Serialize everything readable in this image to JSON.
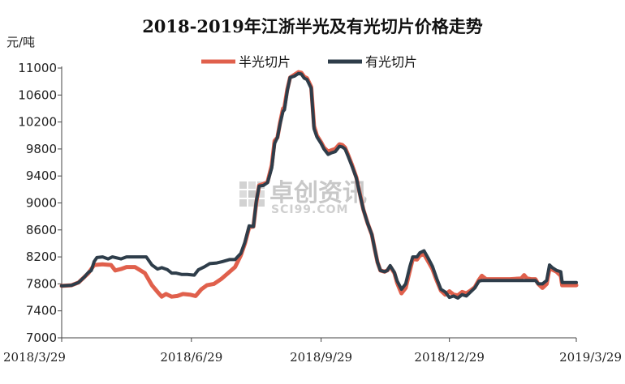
{
  "chart_data": {
    "type": "line",
    "title": "2018-2019年江浙半光及有光切片价格走势",
    "unit_label": "元/吨",
    "ylim": [
      7000,
      11000
    ],
    "y_ticks": [
      "7000",
      "7400",
      "7800",
      "8200",
      "8600",
      "9000",
      "9400",
      "9800",
      "10200",
      "10600",
      "11000"
    ],
    "x_ticks": [
      "2018/3/29",
      "2018/6/29",
      "2018/9/29",
      "2018/12/29",
      "2019/3/29"
    ],
    "xlim": [
      "2018-03-29",
      "2019-03-29"
    ],
    "watermark": {
      "cn": "卓创资讯",
      "en": "SCI99.COM"
    },
    "series": [
      {
        "name": "半光切片",
        "color": "#e0604c",
        "points": [
          [
            "2018-03-29",
            7770
          ],
          [
            "2018-04-05",
            7780
          ],
          [
            "2018-04-10",
            7820
          ],
          [
            "2018-04-14",
            7900
          ],
          [
            "2018-04-17",
            7960
          ],
          [
            "2018-04-21",
            8080
          ],
          [
            "2018-04-27",
            8090
          ],
          [
            "2018-05-03",
            8080
          ],
          [
            "2018-05-06",
            8000
          ],
          [
            "2018-05-10",
            8020
          ],
          [
            "2018-05-14",
            8050
          ],
          [
            "2018-05-20",
            8050
          ],
          [
            "2018-05-27",
            7960
          ],
          [
            "2018-06-01",
            7780
          ],
          [
            "2018-06-05",
            7680
          ],
          [
            "2018-06-08",
            7610
          ],
          [
            "2018-06-11",
            7650
          ],
          [
            "2018-06-15",
            7610
          ],
          [
            "2018-06-19",
            7620
          ],
          [
            "2018-06-23",
            7650
          ],
          [
            "2018-06-28",
            7640
          ],
          [
            "2018-07-02",
            7620
          ],
          [
            "2018-07-06",
            7720
          ],
          [
            "2018-07-10",
            7780
          ],
          [
            "2018-07-15",
            7800
          ],
          [
            "2018-07-20",
            7870
          ],
          [
            "2018-07-25",
            7960
          ],
          [
            "2018-07-30",
            8050
          ],
          [
            "2018-08-03",
            8220
          ],
          [
            "2018-08-06",
            8400
          ],
          [
            "2018-08-09",
            8640
          ],
          [
            "2018-08-12",
            8650
          ],
          [
            "2018-08-14",
            9000
          ],
          [
            "2018-08-16",
            9260
          ],
          [
            "2018-08-19",
            9280
          ],
          [
            "2018-08-22",
            9310
          ],
          [
            "2018-08-25",
            9560
          ],
          [
            "2018-08-27",
            9920
          ],
          [
            "2018-08-29",
            9970
          ],
          [
            "2018-08-31",
            10200
          ],
          [
            "2018-09-02",
            10400
          ],
          [
            "2018-09-03",
            10420
          ],
          [
            "2018-09-05",
            10680
          ],
          [
            "2018-09-07",
            10860
          ],
          [
            "2018-09-10",
            10900
          ],
          [
            "2018-09-13",
            10940
          ],
          [
            "2018-09-15",
            10930
          ],
          [
            "2018-09-17",
            10870
          ],
          [
            "2018-09-19",
            10850
          ],
          [
            "2018-09-22",
            10720
          ],
          [
            "2018-09-24",
            10140
          ],
          [
            "2018-09-26",
            10000
          ],
          [
            "2018-09-29",
            9900
          ],
          [
            "2018-10-01",
            9820
          ],
          [
            "2018-10-04",
            9760
          ],
          [
            "2018-10-06",
            9780
          ],
          [
            "2018-10-09",
            9800
          ],
          [
            "2018-10-12",
            9870
          ],
          [
            "2018-10-14",
            9860
          ],
          [
            "2018-10-16",
            9820
          ],
          [
            "2018-10-18",
            9720
          ],
          [
            "2018-10-21",
            9560
          ],
          [
            "2018-10-24",
            9380
          ],
          [
            "2018-10-27",
            9090
          ],
          [
            "2018-10-29",
            8900
          ],
          [
            "2018-11-01",
            8700
          ],
          [
            "2018-11-04",
            8530
          ],
          [
            "2018-11-06",
            8320
          ],
          [
            "2018-11-08",
            8120
          ],
          [
            "2018-11-10",
            8000
          ],
          [
            "2018-11-13",
            7980
          ],
          [
            "2018-11-15",
            8000
          ],
          [
            "2018-11-17",
            8060
          ],
          [
            "2018-11-20",
            7960
          ],
          [
            "2018-11-22",
            7810
          ],
          [
            "2018-11-25",
            7660
          ],
          [
            "2018-11-28",
            7740
          ],
          [
            "2018-12-01",
            8000
          ],
          [
            "2018-12-03",
            8170
          ],
          [
            "2018-12-06",
            8160
          ],
          [
            "2018-12-08",
            8220
          ],
          [
            "2018-12-11",
            8240
          ],
          [
            "2018-12-14",
            8130
          ],
          [
            "2018-12-17",
            8020
          ],
          [
            "2018-12-20",
            7850
          ],
          [
            "2018-12-23",
            7700
          ],
          [
            "2018-12-26",
            7640
          ],
          [
            "2018-12-29",
            7690
          ],
          [
            "2019-01-01",
            7640
          ],
          [
            "2019-01-04",
            7630
          ],
          [
            "2019-01-07",
            7680
          ],
          [
            "2019-01-10",
            7660
          ],
          [
            "2019-01-13",
            7700
          ],
          [
            "2019-01-16",
            7750
          ],
          [
            "2019-01-19",
            7860
          ],
          [
            "2019-01-21",
            7920
          ],
          [
            "2019-01-24",
            7870
          ],
          [
            "2019-02-01",
            7870
          ],
          [
            "2019-02-10",
            7870
          ],
          [
            "2019-02-18",
            7880
          ],
          [
            "2019-02-20",
            7930
          ],
          [
            "2019-02-22",
            7880
          ],
          [
            "2019-02-25",
            7870
          ],
          [
            "2019-02-28",
            7870
          ],
          [
            "2019-03-02",
            7800
          ],
          [
            "2019-03-05",
            7740
          ],
          [
            "2019-03-08",
            7800
          ],
          [
            "2019-03-10",
            8030
          ],
          [
            "2019-03-12",
            8010
          ],
          [
            "2019-03-15",
            7980
          ],
          [
            "2019-03-18",
            7920
          ],
          [
            "2019-03-19",
            7780
          ],
          [
            "2019-03-22",
            7780
          ],
          [
            "2019-03-29",
            7780
          ]
        ]
      },
      {
        "name": "有光切片",
        "color": "#2e3d4a",
        "points": [
          [
            "2018-03-29",
            7770
          ],
          [
            "2018-04-05",
            7780
          ],
          [
            "2018-04-10",
            7820
          ],
          [
            "2018-04-14",
            7900
          ],
          [
            "2018-04-17",
            7970
          ],
          [
            "2018-04-19",
            8000
          ],
          [
            "2018-04-21",
            8130
          ],
          [
            "2018-04-23",
            8190
          ],
          [
            "2018-04-27",
            8200
          ],
          [
            "2018-05-01",
            8170
          ],
          [
            "2018-05-04",
            8200
          ],
          [
            "2018-05-10",
            8170
          ],
          [
            "2018-05-14",
            8200
          ],
          [
            "2018-05-21",
            8200
          ],
          [
            "2018-05-28",
            8200
          ],
          [
            "2018-06-01",
            8080
          ],
          [
            "2018-06-05",
            8020
          ],
          [
            "2018-06-08",
            8040
          ],
          [
            "2018-06-12",
            8010
          ],
          [
            "2018-06-15",
            7960
          ],
          [
            "2018-06-18",
            7960
          ],
          [
            "2018-06-22",
            7940
          ],
          [
            "2018-06-26",
            7940
          ],
          [
            "2018-07-01",
            7930
          ],
          [
            "2018-07-04",
            8010
          ],
          [
            "2018-07-08",
            8050
          ],
          [
            "2018-07-12",
            8100
          ],
          [
            "2018-07-17",
            8110
          ],
          [
            "2018-07-21",
            8130
          ],
          [
            "2018-07-26",
            8160
          ],
          [
            "2018-07-30",
            8160
          ],
          [
            "2018-08-03",
            8250
          ],
          [
            "2018-08-06",
            8420
          ],
          [
            "2018-08-09",
            8660
          ],
          [
            "2018-08-12",
            8650
          ],
          [
            "2018-08-14",
            9020
          ],
          [
            "2018-08-16",
            9250
          ],
          [
            "2018-08-19",
            9260
          ],
          [
            "2018-08-22",
            9300
          ],
          [
            "2018-08-25",
            9520
          ],
          [
            "2018-08-27",
            9880
          ],
          [
            "2018-08-29",
            9970
          ],
          [
            "2018-08-31",
            10180
          ],
          [
            "2018-09-02",
            10360
          ],
          [
            "2018-09-03",
            10380
          ],
          [
            "2018-09-05",
            10660
          ],
          [
            "2018-09-07",
            10860
          ],
          [
            "2018-09-10",
            10880
          ],
          [
            "2018-09-13",
            10920
          ],
          [
            "2018-09-15",
            10910
          ],
          [
            "2018-09-17",
            10850
          ],
          [
            "2018-09-19",
            10830
          ],
          [
            "2018-09-22",
            10700
          ],
          [
            "2018-09-24",
            10100
          ],
          [
            "2018-09-26",
            9980
          ],
          [
            "2018-09-29",
            9880
          ],
          [
            "2018-10-01",
            9800
          ],
          [
            "2018-10-04",
            9720
          ],
          [
            "2018-10-06",
            9740
          ],
          [
            "2018-10-09",
            9760
          ],
          [
            "2018-10-12",
            9840
          ],
          [
            "2018-10-14",
            9830
          ],
          [
            "2018-10-16",
            9800
          ],
          [
            "2018-10-18",
            9700
          ],
          [
            "2018-10-21",
            9540
          ],
          [
            "2018-10-24",
            9370
          ],
          [
            "2018-10-27",
            9080
          ],
          [
            "2018-10-29",
            8900
          ],
          [
            "2018-11-01",
            8700
          ],
          [
            "2018-11-04",
            8530
          ],
          [
            "2018-11-06",
            8320
          ],
          [
            "2018-11-08",
            8120
          ],
          [
            "2018-11-10",
            8000
          ],
          [
            "2018-11-13",
            7980
          ],
          [
            "2018-11-15",
            8000
          ],
          [
            "2018-11-17",
            8070
          ],
          [
            "2018-11-20",
            7970
          ],
          [
            "2018-11-22",
            7840
          ],
          [
            "2018-11-25",
            7720
          ],
          [
            "2018-11-28",
            7800
          ],
          [
            "2018-12-01",
            8060
          ],
          [
            "2018-12-03",
            8200
          ],
          [
            "2018-12-06",
            8200
          ],
          [
            "2018-12-08",
            8260
          ],
          [
            "2018-12-11",
            8290
          ],
          [
            "2018-12-14",
            8180
          ],
          [
            "2018-12-17",
            8060
          ],
          [
            "2018-12-20",
            7880
          ],
          [
            "2018-12-23",
            7720
          ],
          [
            "2018-12-26",
            7680
          ],
          [
            "2018-12-29",
            7600
          ],
          [
            "2019-01-01",
            7620
          ],
          [
            "2019-01-04",
            7590
          ],
          [
            "2019-01-07",
            7640
          ],
          [
            "2019-01-10",
            7620
          ],
          [
            "2019-01-13",
            7680
          ],
          [
            "2019-01-16",
            7740
          ],
          [
            "2019-01-19",
            7840
          ],
          [
            "2019-01-21",
            7850
          ],
          [
            "2019-01-24",
            7850
          ],
          [
            "2019-02-01",
            7850
          ],
          [
            "2019-02-10",
            7850
          ],
          [
            "2019-02-18",
            7850
          ],
          [
            "2019-02-25",
            7850
          ],
          [
            "2019-02-28",
            7850
          ],
          [
            "2019-03-02",
            7800
          ],
          [
            "2019-03-05",
            7800
          ],
          [
            "2019-03-08",
            7850
          ],
          [
            "2019-03-10",
            8080
          ],
          [
            "2019-03-12",
            8040
          ],
          [
            "2019-03-15",
            8000
          ],
          [
            "2019-03-18",
            7980
          ],
          [
            "2019-03-19",
            7820
          ],
          [
            "2019-03-22",
            7820
          ],
          [
            "2019-03-29",
            7820
          ]
        ]
      }
    ]
  }
}
